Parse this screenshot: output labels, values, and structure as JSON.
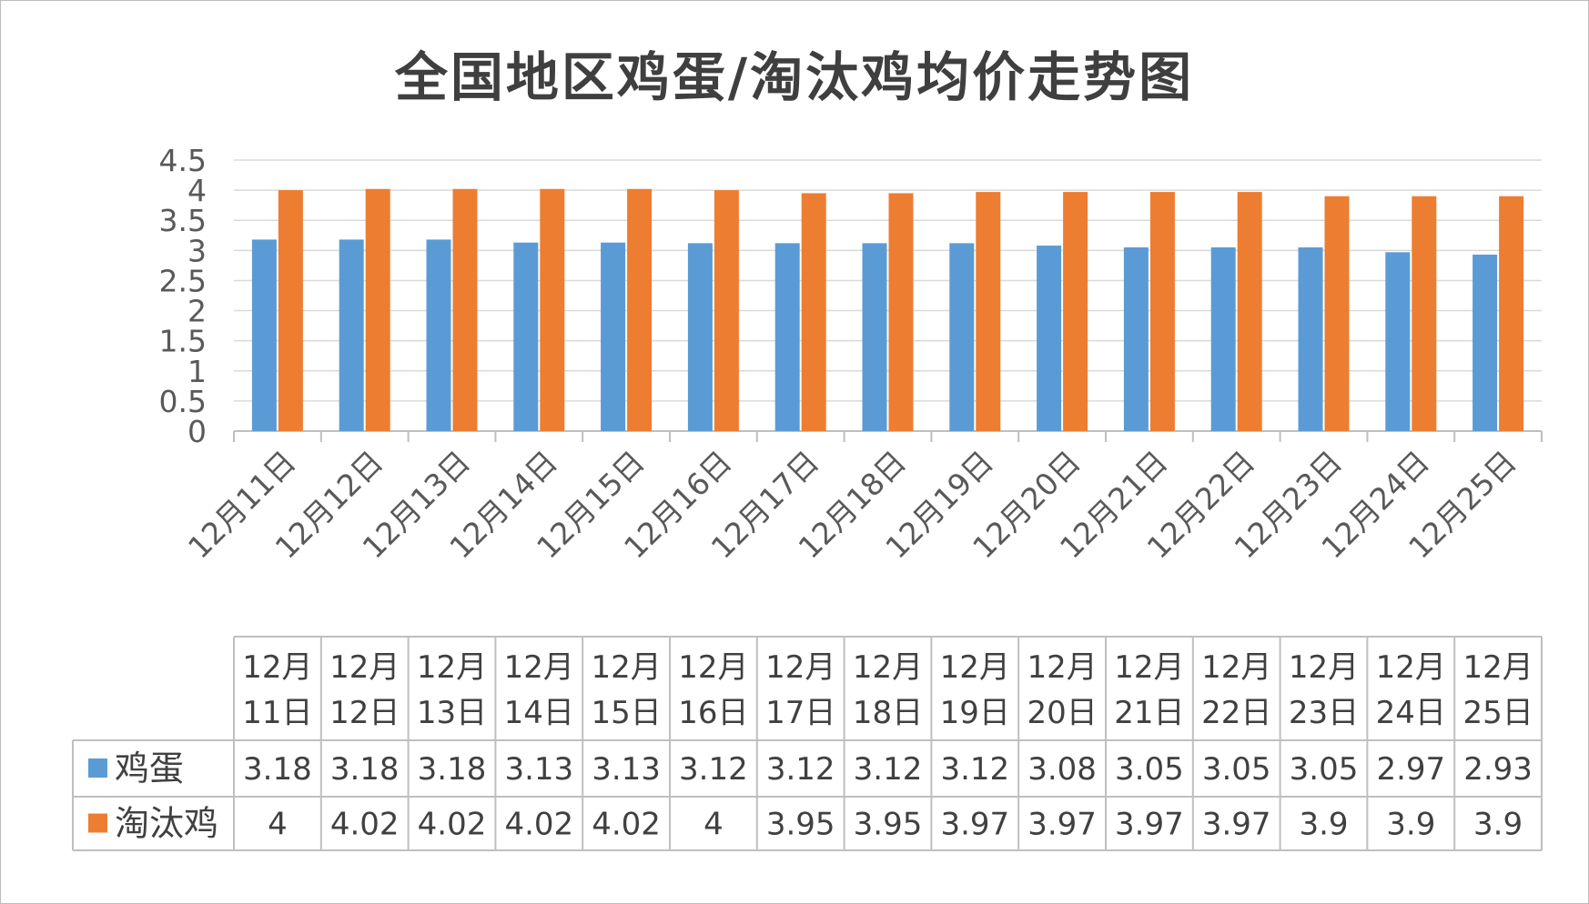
{
  "chart_data": {
    "type": "bar",
    "title": "全国地区鸡蛋/淘汰鸡均价走势图",
    "categories": [
      "12月11日",
      "12月12日",
      "12月13日",
      "12月14日",
      "12月15日",
      "12月16日",
      "12月17日",
      "12月18日",
      "12月19日",
      "12月20日",
      "12月21日",
      "12月22日",
      "12月23日",
      "12月24日",
      "12月25日"
    ],
    "series": [
      {
        "name": "鸡蛋",
        "color": "#5B9BD5",
        "values": [
          3.18,
          3.18,
          3.18,
          3.13,
          3.13,
          3.12,
          3.12,
          3.12,
          3.12,
          3.08,
          3.05,
          3.05,
          3.05,
          2.97,
          2.93
        ]
      },
      {
        "name": "淘汰鸡",
        "color": "#ED7D31",
        "values": [
          4,
          4.02,
          4.02,
          4.02,
          4.02,
          4,
          3.95,
          3.95,
          3.97,
          3.97,
          3.97,
          3.97,
          3.9,
          3.9,
          3.9
        ]
      }
    ],
    "value_labels": [
      [
        "3.18",
        "3.18",
        "3.18",
        "3.13",
        "3.13",
        "3.12",
        "3.12",
        "3.12",
        "3.12",
        "3.08",
        "3.05",
        "3.05",
        "3.05",
        "2.97",
        "2.93"
      ],
      [
        "4",
        "4.02",
        "4.02",
        "4.02",
        "4.02",
        "4",
        "3.95",
        "3.95",
        "3.97",
        "3.97",
        "3.97",
        "3.97",
        "3.9",
        "3.9",
        "3.9"
      ]
    ],
    "ylim": [
      0,
      4.5
    ],
    "yticks": [
      "0",
      "0.5",
      "1",
      "1.5",
      "2",
      "2.5",
      "3",
      "3.5",
      "4",
      "4.5"
    ],
    "grid": true,
    "legend": "data table below chart"
  }
}
